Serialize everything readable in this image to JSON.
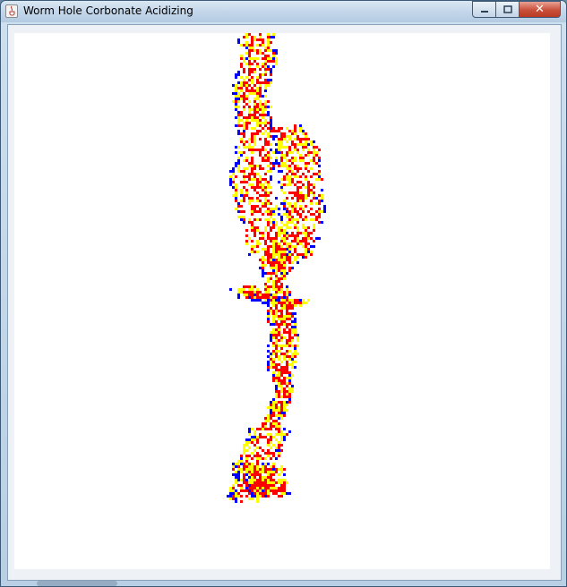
{
  "window": {
    "title": "Worm Hole Corbonate Acidizing",
    "controls": {
      "minimize": "minimize-icon",
      "maximize": "maximize-icon",
      "close": "close-icon"
    }
  },
  "simulation": {
    "colors": {
      "acid_core": "#ff0000",
      "reaction_front": "#ffff00",
      "dissolved_edge": "#0000ff",
      "background": "#ffffff"
    }
  }
}
